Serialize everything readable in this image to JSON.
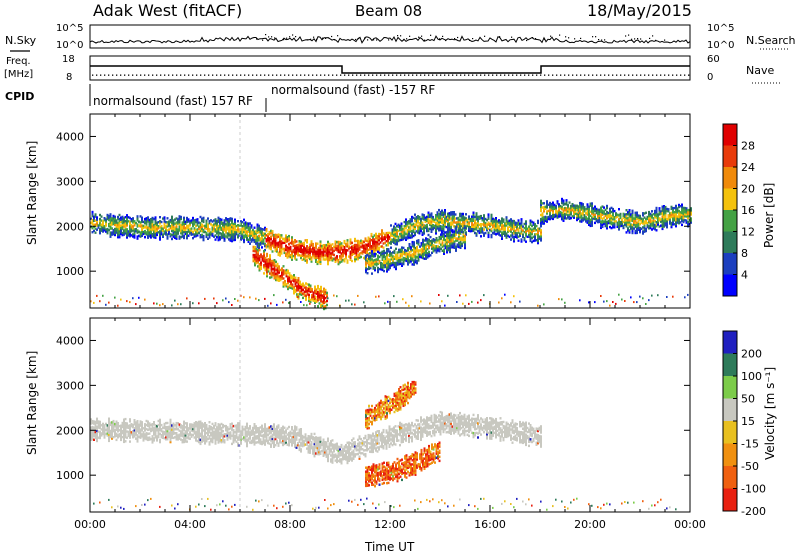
{
  "header": {
    "station": "Adak West (fitACF)",
    "beam": "Beam 08",
    "date": "18/May/2015"
  },
  "panels": {
    "nsky": {
      "label": "N.Sky",
      "right_label": "N.Search",
      "ticks_left": [
        "10^5",
        "10^0"
      ],
      "ticks_right": [
        "10^5",
        "10^0"
      ]
    },
    "freq": {
      "label": "Freq.",
      "unit": "[MHz]",
      "right_label": "Nave",
      "ticks_left": [
        "18",
        "8"
      ],
      "ticks_right": [
        "60",
        "0"
      ]
    },
    "cpid": {
      "label": "CPID",
      "segments": [
        {
          "text": "normalsound (fast) 157 RF"
        },
        {
          "text": "normalsound (fast) -157 RF"
        }
      ]
    }
  },
  "colors": {
    "power": [
      "#0000ff",
      "#1c3fbf",
      "#2e7b5a",
      "#44a244",
      "#f4c20d",
      "#f08a0a",
      "#e83b0a",
      "#e00000"
    ],
    "velocity": [
      "#2020c0",
      "#2e7b5a",
      "#7ccc4a",
      "#c8c8c0",
      "#e8c020",
      "#f09010",
      "#f06010",
      "#e82010"
    ]
  },
  "chart_data": [
    {
      "type": "heatmap",
      "title": "",
      "xlabel": "",
      "ylabel": "Slant Range [km]",
      "xlim": [
        0,
        24
      ],
      "ylim": [
        180,
        4500
      ],
      "x_ticks": [
        0,
        4,
        8,
        12,
        16,
        20,
        24
      ],
      "x_tick_labels": [
        "00:00",
        "04:00",
        "08:00",
        "12:00",
        "16:00",
        "20:00",
        "00:00"
      ],
      "y_ticks": [
        1000,
        2000,
        3000,
        4000
      ],
      "y_tick_labels": [
        "1000",
        "2000",
        "3000",
        "4000"
      ],
      "colorbar": {
        "label": "Power [dB]",
        "ticks": [
          "4",
          "8",
          "12",
          "16",
          "20",
          "24",
          "28"
        ],
        "range": [
          0,
          32
        ]
      },
      "series": [
        {
          "x": [
            0,
            2,
            4,
            6,
            7,
            8,
            9,
            10,
            11,
            12,
            13,
            14,
            15,
            16,
            17,
            18
          ],
          "y": [
            2100,
            2000,
            2000,
            1950,
            1750,
            1550,
            1450,
            1450,
            1550,
            1800,
            2050,
            2150,
            2100,
            2050,
            1950,
            1900
          ]
        },
        {
          "x": [
            6.5,
            7.5,
            8.5,
            9.5
          ],
          "y": [
            1400,
            1000,
            600,
            400
          ]
        },
        {
          "x": [
            11,
            12,
            13,
            14,
            15
          ],
          "y": [
            1200,
            1300,
            1450,
            1650,
            1800
          ]
        },
        {
          "x": [
            18,
            19,
            20,
            21,
            22,
            23,
            24
          ],
          "y": [
            2350,
            2400,
            2300,
            2200,
            2100,
            2250,
            2300
          ]
        }
      ]
    },
    {
      "type": "heatmap",
      "title": "",
      "xlabel": "Time UT",
      "ylabel": "Slant Range [km]",
      "xlim": [
        0,
        24
      ],
      "ylim": [
        180,
        4500
      ],
      "x_ticks": [
        0,
        4,
        8,
        12,
        16,
        20,
        24
      ],
      "x_tick_labels": [
        "00:00",
        "04:00",
        "08:00",
        "12:00",
        "16:00",
        "20:00",
        "00:00"
      ],
      "y_ticks": [
        1000,
        2000,
        3000,
        4000
      ],
      "y_tick_labels": [
        "1000",
        "2000",
        "3000",
        "4000"
      ],
      "colorbar": {
        "label": "Velocity [m s⁻¹]",
        "ticks": [
          "200",
          "100",
          "50",
          "15",
          "-15",
          "-50",
          "-100",
          "-200"
        ],
        "range": [
          -250,
          250
        ]
      },
      "series": [
        {
          "x": [
            0,
            4,
            8,
            10,
            12,
            14,
            16,
            18
          ],
          "y": [
            2050,
            2000,
            1900,
            1500,
            1900,
            2200,
            2100,
            1900
          ]
        },
        {
          "x": [
            11,
            12,
            13,
            14
          ],
          "y": [
            1000,
            1100,
            1300,
            1600
          ]
        },
        {
          "x": [
            11,
            12,
            13
          ],
          "y": [
            2300,
            2600,
            3000
          ]
        }
      ]
    }
  ]
}
